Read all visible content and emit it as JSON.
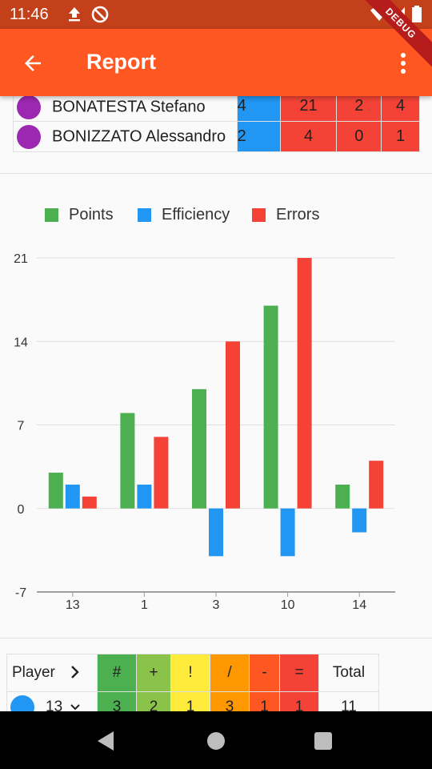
{
  "status_bar": {
    "time": "11:46",
    "icons": [
      "upload-icon",
      "do-not-disturb-icon",
      "wifi-icon",
      "signal-icon",
      "battery-icon"
    ],
    "debug_banner": "DEBUG"
  },
  "app_bar": {
    "title": "Report",
    "back_icon": "arrow-back-icon",
    "menu_icon": "more-vert-icon",
    "color": "#ff5722"
  },
  "player_rows": [
    {
      "name": "BONATESTA Stefano",
      "avatar_color": "#9c27b0",
      "values": [
        "4",
        "21",
        "2",
        "4"
      ],
      "value_colors": [
        "#2196f3",
        "#f44336",
        "#f44336",
        "#f44336"
      ]
    },
    {
      "name": "BONIZZATO Alessandro",
      "avatar_color": "#9c27b0",
      "values": [
        "2",
        "4",
        "0",
        "1"
      ],
      "value_colors": [
        "#2196f3",
        "#f44336",
        "#f44336",
        "#f44336"
      ]
    }
  ],
  "chart_data": {
    "type": "bar",
    "categories": [
      "13",
      "1",
      "3",
      "10",
      "14"
    ],
    "series": [
      {
        "name": "Points",
        "color": "#4caf50",
        "values": [
          3,
          8,
          10,
          17,
          2
        ]
      },
      {
        "name": "Efficiency",
        "color": "#2196f3",
        "values": [
          2,
          2,
          -4,
          -4,
          -2
        ]
      },
      {
        "name": "Errors",
        "color": "#f44336",
        "values": [
          1,
          6,
          14,
          21,
          4
        ]
      }
    ],
    "yticks": [
      "21",
      "14",
      "7",
      "0",
      "-7"
    ],
    "ylim": [
      -7,
      21
    ],
    "grid": true,
    "legend_position": "top-left"
  },
  "bottom_table": {
    "header_player": "Player",
    "header_chevron_icon": "chevron-right-icon",
    "columns": [
      {
        "label": "#",
        "color": "#4caf50"
      },
      {
        "label": "+",
        "color": "#8bc34a"
      },
      {
        "label": "!",
        "color": "#ffeb3b"
      },
      {
        "label": "/",
        "color": "#ff9800"
      },
      {
        "label": "-",
        "color": "#ff5722"
      },
      {
        "label": "=",
        "color": "#f44336"
      }
    ],
    "header_total": "Total",
    "row": {
      "player": "13",
      "avatar_color": "#2196f3",
      "dropdown_icon": "chevron-down-icon",
      "values": [
        "3",
        "2",
        "1",
        "3",
        "1",
        "1"
      ],
      "total": "11"
    }
  },
  "nav_bar": {
    "icons": [
      "back-triangle-icon",
      "home-circle-icon",
      "recents-square-icon"
    ]
  }
}
